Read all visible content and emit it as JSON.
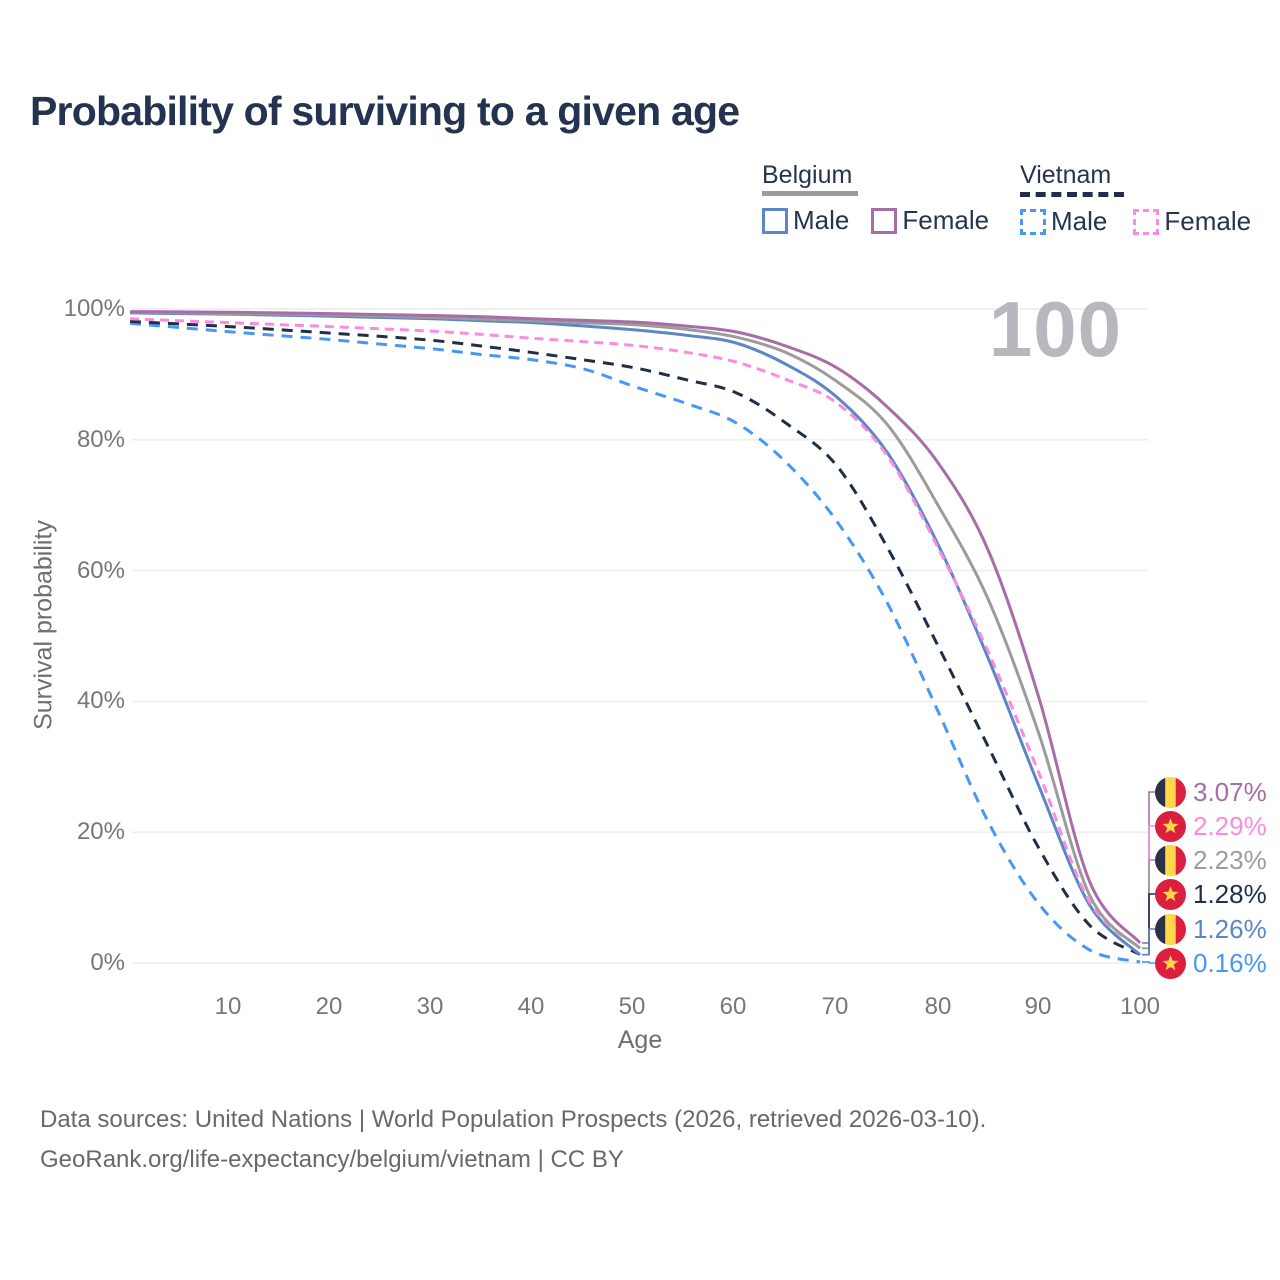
{
  "title": "Probability of surviving to a given age",
  "watermark_age": "100",
  "legend": {
    "belgium": {
      "label": "Belgium",
      "male": "Male",
      "female": "Female",
      "line_color": "#9c9c9c",
      "male_color": "#5b87c5",
      "female_color": "#a76da7"
    },
    "vietnam": {
      "label": "Vietnam",
      "male": "Male",
      "female": "Female",
      "line_color": "#1f2e49",
      "male_color": "#4897f2",
      "female_color": "#fb8ae0"
    }
  },
  "axes": {
    "y_label": "Survival probability",
    "x_label": "Age",
    "y_ticks": [
      "100%",
      "80%",
      "60%",
      "40%",
      "20%",
      "0%"
    ],
    "x_ticks": [
      "10",
      "20",
      "30",
      "40",
      "50",
      "60",
      "70",
      "80",
      "90",
      "100"
    ]
  },
  "end_labels": [
    {
      "series": "Belgium Female",
      "flag": "Belgium",
      "value": "3.07%",
      "color": "#a76da7"
    },
    {
      "series": "Vietnam Female",
      "flag": "Vietnam",
      "value": "2.29%",
      "color": "#fb8ae0"
    },
    {
      "series": "Belgium",
      "flag": "Belgium",
      "value": "2.23%",
      "color": "#9c9c9c"
    },
    {
      "series": "Vietnam",
      "flag": "Vietnam",
      "value": "1.28%",
      "color": "#1f2e49"
    },
    {
      "series": "Belgium Male",
      "flag": "Belgium",
      "value": "1.26%",
      "color": "#5b87c5"
    },
    {
      "series": "Vietnam Male",
      "flag": "Vietnam",
      "value": "0.16%",
      "color": "#4897f2"
    }
  ],
  "footer": {
    "line1": "Data sources: United Nations | World Population Prospects (2026, retrieved 2026-03-10).",
    "line2": "GeoRank.org/life-expectancy/belgium/vietnam | CC BY"
  },
  "chart_data": {
    "type": "line",
    "title": "Probability of surviving to a given age",
    "xlabel": "Age",
    "ylabel": "Survival probability",
    "xlim": [
      0,
      100
    ],
    "ylim": [
      0,
      100
    ],
    "y_tick_values": [
      0,
      20,
      40,
      60,
      80,
      100
    ],
    "x_tick_values": [
      10,
      20,
      30,
      40,
      50,
      60,
      70,
      80,
      90,
      100
    ],
    "grid": "horizontal",
    "legend_position": "top-right",
    "hover_age": 100,
    "ages": [
      0,
      5,
      10,
      15,
      20,
      25,
      30,
      35,
      40,
      45,
      50,
      55,
      60,
      65,
      70,
      75,
      80,
      85,
      90,
      95,
      100
    ],
    "series": [
      {
        "name": "Belgium Female",
        "country": "Belgium",
        "sex": "Female",
        "style": "solid",
        "color": "#a76da7",
        "end_value_pct": 3.07,
        "values": [
          99.6,
          99.55,
          99.5,
          99.4,
          99.3,
          99.15,
          99.0,
          98.8,
          98.5,
          98.25,
          98.0,
          97.4,
          96.5,
          94.3,
          91.0,
          85.0,
          76.5,
          63.0,
          40.5,
          12.5,
          3.07
        ]
      },
      {
        "name": "Belgium",
        "country": "Belgium",
        "sex": "Both",
        "style": "solid",
        "color": "#9c9c9c",
        "end_value_pct": 2.23,
        "values": [
          99.5,
          99.4,
          99.3,
          99.2,
          99.1,
          98.9,
          98.7,
          98.45,
          98.2,
          97.9,
          97.6,
          96.9,
          95.7,
          93.3,
          88.9,
          82.3,
          70.0,
          55.5,
          35.0,
          10.4,
          2.23
        ]
      },
      {
        "name": "Belgium Male",
        "country": "Belgium",
        "sex": "Male",
        "style": "solid",
        "color": "#5b87c5",
        "end_value_pct": 1.26,
        "values": [
          99.4,
          99.3,
          99.2,
          99.05,
          98.9,
          98.7,
          98.5,
          98.2,
          97.9,
          97.4,
          96.8,
          96.0,
          94.8,
          91.5,
          86.5,
          78.0,
          64.0,
          46.5,
          27.0,
          8.9,
          1.26
        ]
      },
      {
        "name": "Vietnam Female",
        "country": "Vietnam",
        "sex": "Female",
        "style": "dashed",
        "color": "#fb8ae0",
        "end_value_pct": 2.29,
        "values": [
          98.5,
          98.2,
          97.9,
          97.6,
          97.3,
          96.95,
          96.6,
          96.1,
          95.5,
          95.0,
          94.4,
          93.4,
          91.9,
          89.2,
          85.6,
          77.5,
          63.5,
          47.5,
          29.0,
          9.4,
          2.29
        ]
      },
      {
        "name": "Vietnam",
        "country": "Vietnam",
        "sex": "Both",
        "style": "dashed",
        "color": "#1f2e49",
        "end_value_pct": 1.28,
        "values": [
          98.1,
          97.7,
          97.3,
          96.8,
          96.3,
          95.8,
          95.2,
          94.3,
          93.3,
          92.2,
          91.0,
          89.2,
          87.2,
          82.5,
          76.0,
          63.5,
          48.5,
          33.0,
          17.5,
          5.8,
          1.28
        ]
      },
      {
        "name": "Vietnam Male",
        "country": "Vietnam",
        "sex": "Male",
        "style": "dashed",
        "color": "#4897f2",
        "end_value_pct": 0.16,
        "values": [
          97.8,
          97.15,
          96.5,
          95.9,
          95.3,
          94.6,
          93.9,
          93.0,
          92.2,
          90.8,
          88.1,
          85.6,
          82.6,
          76.5,
          67.5,
          55.0,
          38.5,
          21.5,
          9.0,
          2.0,
          0.16
        ]
      }
    ]
  }
}
